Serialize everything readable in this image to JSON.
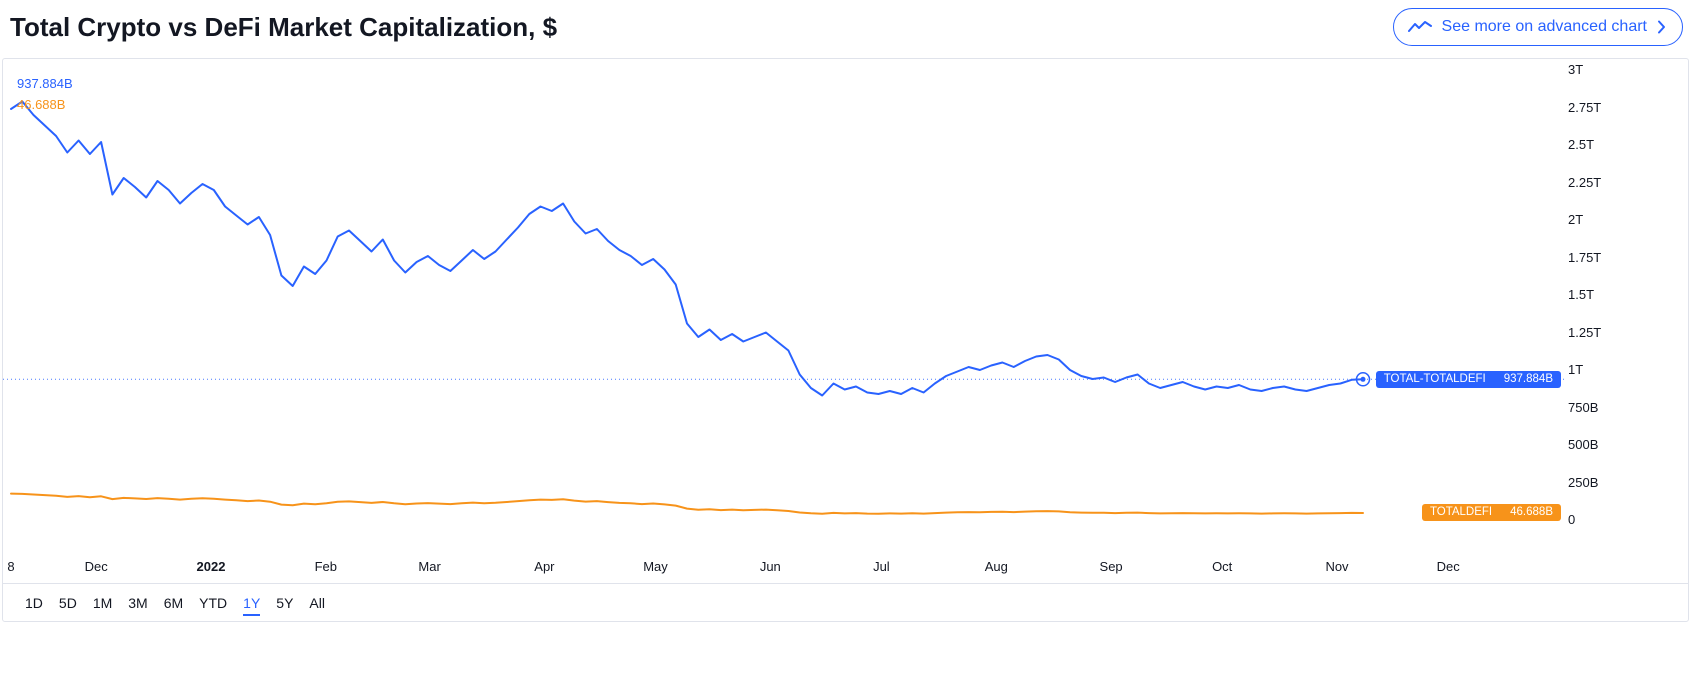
{
  "header": {
    "title": "Total Crypto vs DeFi Market Capitalization, $",
    "advanced_button_label": "See more on advanced chart"
  },
  "colors": {
    "accent_blue": "#2962FF",
    "accent_orange": "#F7931A",
    "border": "#E0E3EB",
    "text": "#131722"
  },
  "legend": {
    "total_value": "937.884B",
    "defi_value": "46.688B"
  },
  "badges": {
    "total": {
      "label": "TOTAL-TOTALDEFI",
      "value": "937.884B"
    },
    "defi": {
      "label": "TOTALDEFI",
      "value": "46.688B"
    }
  },
  "range_buttons": [
    {
      "label": "1D",
      "active": false
    },
    {
      "label": "5D",
      "active": false
    },
    {
      "label": "1M",
      "active": false
    },
    {
      "label": "3M",
      "active": false
    },
    {
      "label": "6M",
      "active": false
    },
    {
      "label": "YTD",
      "active": false
    },
    {
      "label": "1Y",
      "active": true
    },
    {
      "label": "5Y",
      "active": false
    },
    {
      "label": "All",
      "active": false
    }
  ],
  "chart_data": {
    "type": "line",
    "title": "Total Crypto vs DeFi Market Capitalization, $",
    "units": "USD (values in billions)",
    "x_start": "Nov 8, 2021",
    "x_end": "Nov 8, 2022",
    "selected_range": "1Y",
    "grid": false,
    "legend_position": "top-left",
    "ylim": [
      0,
      3000
    ],
    "sample_interval_days": 3.0417,
    "y_ticks": [
      {
        "label": "3T",
        "value": 3000
      },
      {
        "label": "2.75T",
        "value": 2750
      },
      {
        "label": "2.5T",
        "value": 2500
      },
      {
        "label": "2.25T",
        "value": 2250
      },
      {
        "label": "2T",
        "value": 2000
      },
      {
        "label": "1.75T",
        "value": 1750
      },
      {
        "label": "1.5T",
        "value": 1500
      },
      {
        "label": "1.25T",
        "value": 1250
      },
      {
        "label": "1T",
        "value": 1000
      },
      {
        "label": "750B",
        "value": 750
      },
      {
        "label": "500B",
        "value": 500
      },
      {
        "label": "250B",
        "value": 250
      },
      {
        "label": "0",
        "value": 0
      }
    ],
    "x_ticks": [
      {
        "label": "8",
        "day": 0,
        "bold": false
      },
      {
        "label": "Dec",
        "day": 23,
        "bold": false
      },
      {
        "label": "2022",
        "day": 54,
        "bold": true
      },
      {
        "label": "Feb",
        "day": 85,
        "bold": false
      },
      {
        "label": "Mar",
        "day": 113,
        "bold": false
      },
      {
        "label": "Apr",
        "day": 144,
        "bold": false
      },
      {
        "label": "May",
        "day": 174,
        "bold": false
      },
      {
        "label": "Jun",
        "day": 205,
        "bold": false
      },
      {
        "label": "Jul",
        "day": 235,
        "bold": false
      },
      {
        "label": "Aug",
        "day": 266,
        "bold": false
      },
      {
        "label": "Sep",
        "day": 297,
        "bold": false
      },
      {
        "label": "Oct",
        "day": 327,
        "bold": false
      },
      {
        "label": "Nov",
        "day": 358,
        "bold": false
      },
      {
        "label": "Dec",
        "day": 388,
        "bold": false
      }
    ],
    "series": [
      {
        "name": "TOTAL-TOTALDEFI",
        "color": "#2962FF",
        "last_value": 937.884,
        "last_value_label": "937.884B",
        "values": [
          2740,
          2790,
          2700,
          2630,
          2560,
          2450,
          2530,
          2440,
          2520,
          2170,
          2280,
          2220,
          2150,
          2260,
          2200,
          2110,
          2180,
          2240,
          2200,
          2090,
          2030,
          1970,
          2020,
          1900,
          1630,
          1560,
          1690,
          1640,
          1730,
          1890,
          1930,
          1860,
          1790,
          1870,
          1730,
          1650,
          1720,
          1760,
          1700,
          1660,
          1730,
          1800,
          1740,
          1790,
          1870,
          1950,
          2040,
          2090,
          2060,
          2110,
          1990,
          1910,
          1940,
          1860,
          1800,
          1760,
          1700,
          1740,
          1670,
          1570,
          1310,
          1220,
          1270,
          1200,
          1240,
          1190,
          1220,
          1250,
          1190,
          1130,
          970,
          880,
          830,
          910,
          870,
          890,
          850,
          840,
          860,
          840,
          880,
          850,
          910,
          960,
          990,
          1020,
          1000,
          1030,
          1050,
          1020,
          1060,
          1090,
          1100,
          1070,
          1000,
          960,
          940,
          950,
          920,
          950,
          970,
          910,
          880,
          900,
          920,
          890,
          870,
          890,
          880,
          900,
          870,
          860,
          880,
          890,
          870,
          860,
          880,
          900,
          910,
          935,
          937.884
        ]
      },
      {
        "name": "TOTALDEFI",
        "color": "#F7931A",
        "last_value": 46.688,
        "last_value_label": "46.688B",
        "values": [
          176,
          174,
          170,
          166,
          161,
          154,
          159,
          152,
          158,
          139,
          147,
          144,
          140,
          146,
          142,
          136,
          141,
          145,
          142,
          136,
          131,
          126,
          130,
          122,
          103,
          98,
          109,
          105,
          111,
          121,
          124,
          119,
          114,
          120,
          111,
          105,
          110,
          113,
          109,
          106,
          111,
          116,
          112,
          115,
          120,
          126,
          132,
          136,
          134,
          138,
          129,
          123,
          126,
          119,
          114,
          111,
          106,
          110,
          104,
          96,
          76,
          68,
          72,
          66,
          69,
          65,
          67,
          69,
          65,
          60,
          50,
          45,
          42,
          47,
          44,
          46,
          43,
          42,
          44,
          43,
          45,
          43,
          46,
          49,
          51,
          53,
          52,
          54,
          55,
          53,
          56,
          58,
          59,
          57,
          52,
          49,
          48,
          48,
          46,
          48,
          49,
          46,
          44,
          45,
          46,
          45,
          44,
          45,
          44,
          45,
          44,
          43,
          44,
          45,
          44,
          43,
          44,
          45,
          46,
          47,
          46.688
        ]
      }
    ]
  }
}
